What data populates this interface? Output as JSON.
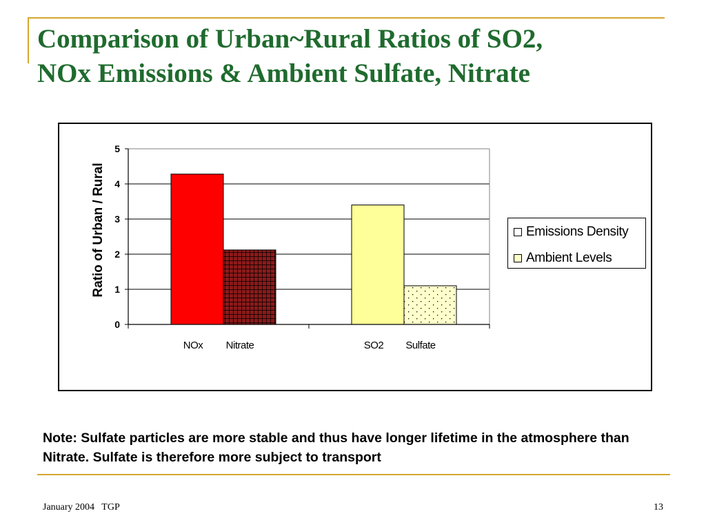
{
  "slide": {
    "title_line1": "Comparison of Urban~Rural Ratios of SO2,",
    "title_line2": "NOx Emissions & Ambient Sulfate, Nitrate",
    "note": "Note: Sulfate particles are more stable and thus have longer lifetime in the atmosphere than Nitrate.  Sulfate is therefore more subject to transport",
    "footer_left": "January 2004   TGP",
    "page_number": "13"
  },
  "colors": {
    "title": "#1f6b2e",
    "accent_rule": "#d4a72c",
    "nox": "#ff0000",
    "nitrate_fill": "#8b1a1a",
    "so2": "#ffff99",
    "sulfate_fill": "#ffffcc"
  },
  "chart_data": {
    "type": "bar",
    "title": "",
    "xlabel": "",
    "ylabel": "Ratio of  Urban / Rural",
    "ylim": [
      0,
      5
    ],
    "yticks": [
      "0",
      "1",
      "2",
      "3",
      "4",
      "5"
    ],
    "grid": true,
    "legend_position": "right",
    "groups": [
      {
        "bars": [
          {
            "label": "NOx",
            "series": "Emissions Density",
            "value": 4.28,
            "fill": "#ff0000",
            "pattern": "solid"
          },
          {
            "label": "Nitrate",
            "series": "Ambient Levels",
            "value": 2.12,
            "fill": "#8b1a1a",
            "pattern": "grid"
          }
        ]
      },
      {
        "bars": [
          {
            "label": "SO2",
            "series": "Emissions Density",
            "value": 3.4,
            "fill": "#ffff99",
            "pattern": "solid"
          },
          {
            "label": "Sulfate",
            "series": "Ambient Levels",
            "value": 1.1,
            "fill": "#ffffcc",
            "pattern": "dots"
          }
        ]
      }
    ],
    "legend": [
      {
        "label": "Emissions Density",
        "swatch": "#ffffff"
      },
      {
        "label": "Ambient Levels",
        "swatch": "#ffffcc"
      }
    ]
  }
}
